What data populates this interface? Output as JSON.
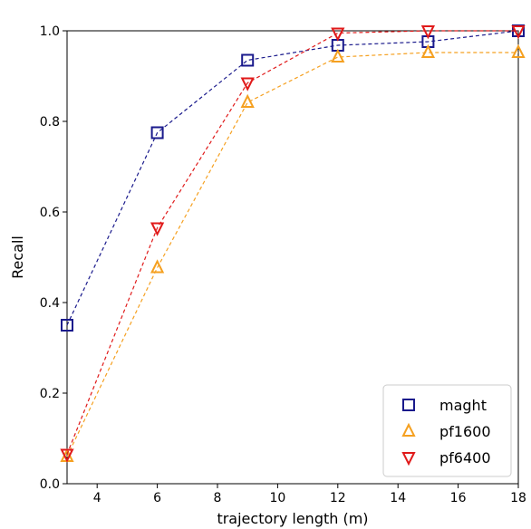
{
  "chart_data": {
    "type": "line",
    "xlabel": "trajectory length (m)",
    "ylabel": "Recall",
    "xlim": [
      3,
      18
    ],
    "ylim": [
      0.0,
      1.0
    ],
    "xticks": [
      4,
      6,
      8,
      10,
      12,
      14,
      16,
      18
    ],
    "yticks": [
      0.0,
      0.2,
      0.4,
      0.6,
      0.8,
      1.0
    ],
    "x_tick_labels": [
      "4",
      "6",
      "8",
      "10",
      "12",
      "14",
      "16",
      "18"
    ],
    "y_tick_labels": [
      "0.0",
      "0.2",
      "0.4",
      "0.6",
      "0.8",
      "1.0"
    ],
    "grid": false,
    "legend_position": "lower-right",
    "x": [
      3,
      6,
      9,
      12,
      15,
      18
    ],
    "series": [
      {
        "name": "maght",
        "values": [
          0.35,
          0.775,
          0.935,
          0.968,
          0.976,
          1.0
        ],
        "color": "#1a1a8c",
        "marker": "square"
      },
      {
        "name": "pf1600",
        "values": [
          0.06,
          0.477,
          0.842,
          0.942,
          0.952,
          0.952
        ],
        "color": "#f5a020",
        "marker": "triangle-up"
      },
      {
        "name": "pf6400",
        "values": [
          0.065,
          0.565,
          0.885,
          0.995,
          1.0,
          1.0
        ],
        "color": "#e01a1a",
        "marker": "triangle-down"
      }
    ]
  }
}
